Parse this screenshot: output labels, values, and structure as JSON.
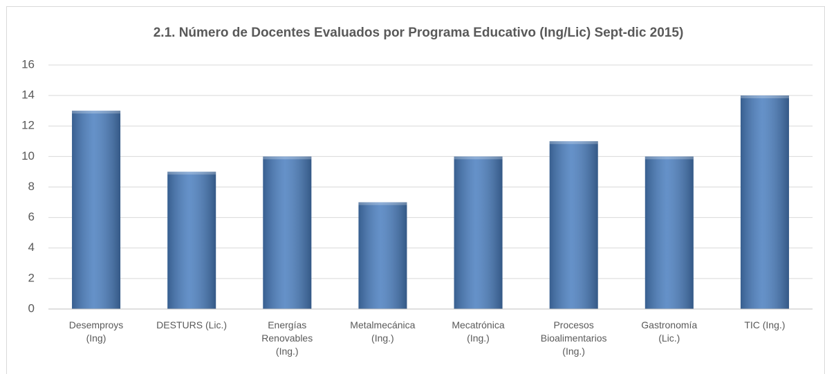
{
  "chart_data": {
    "type": "bar",
    "title": "2.1. Número de Docentes Evaluados  por Programa Educativo (Ing/Lic) Sept-dic 2015)",
    "categories": [
      "Desemproys\n(Ing)",
      "DESTURS  (Lic.)",
      "Energías\nRenovables\n(Ing.)",
      "Metalmecánica\n(Ing.)",
      "Mecatrónica\n(Ing.)",
      "Procesos\nBioalimentarios\n(Ing.)",
      "Gastronomía\n(Lic.)",
      "TIC (Ing.)"
    ],
    "values": [
      13,
      9,
      10,
      7,
      10,
      11,
      10,
      14
    ],
    "color": "#4a7ebf",
    "ylim": [
      0,
      16
    ],
    "yticks": [
      0,
      2,
      4,
      6,
      8,
      10,
      12,
      14,
      16
    ],
    "grid": true
  }
}
